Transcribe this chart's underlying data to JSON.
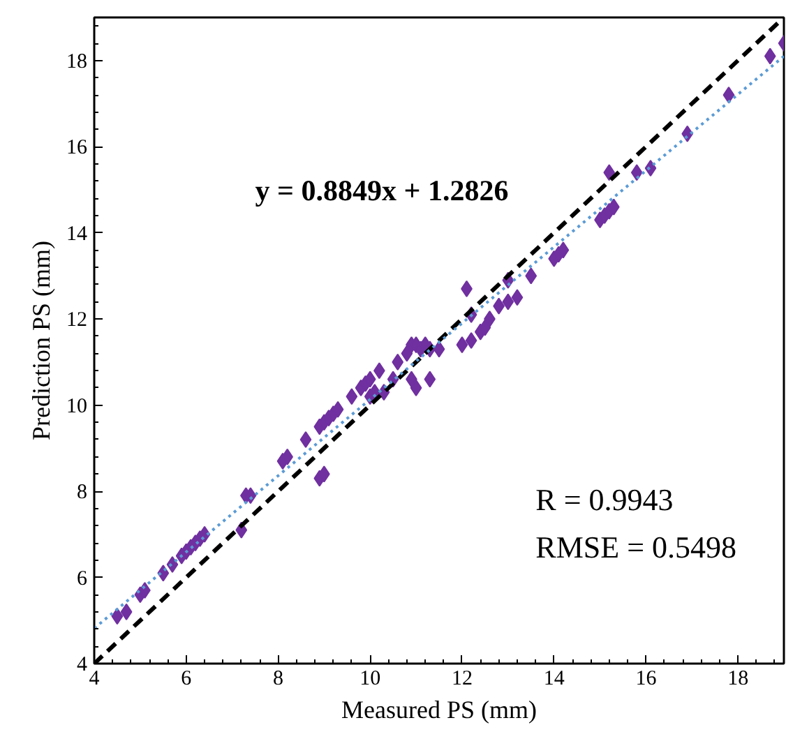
{
  "chart_data": {
    "type": "scatter",
    "xlabel": "Measured PS (mm)",
    "ylabel": "Prediction PS (mm)",
    "xlim": [
      4,
      19
    ],
    "ylim": [
      4,
      19
    ],
    "xticks": [
      4,
      6,
      8,
      10,
      12,
      14,
      16,
      18
    ],
    "yticks": [
      4,
      6,
      8,
      10,
      12,
      14,
      16,
      18
    ],
    "grid": false,
    "series": [
      {
        "color": "#7030a0",
        "marker": "diamond",
        "x": [
          4.5,
          4.7,
          5.0,
          5.1,
          5.5,
          5.7,
          5.9,
          6.0,
          6.1,
          6.2,
          6.3,
          6.4,
          7.2,
          7.3,
          7.4,
          8.1,
          8.2,
          8.6,
          8.9,
          9.0,
          8.9,
          9.0,
          9.1,
          9.2,
          9.3,
          9.6,
          9.8,
          9.9,
          10.0,
          10.0,
          10.1,
          10.2,
          10.3,
          10.5,
          10.6,
          10.8,
          10.9,
          10.9,
          11.0,
          11.0,
          11.1,
          11.2,
          11.3,
          11.3,
          11.5,
          12.0,
          12.1,
          12.2,
          12.2,
          12.4,
          12.5,
          12.6,
          12.8,
          13.0,
          13.0,
          13.2,
          13.5,
          14.0,
          14.1,
          14.2,
          15.0,
          15.1,
          15.2,
          15.3,
          15.2,
          15.8,
          16.1,
          16.9,
          17.8,
          18.7,
          19.0
        ],
        "values": [
          5.1,
          5.2,
          5.6,
          5.7,
          6.1,
          6.3,
          6.5,
          6.6,
          6.7,
          6.8,
          6.9,
          7.0,
          7.1,
          7.9,
          7.9,
          8.7,
          8.8,
          9.2,
          8.3,
          8.4,
          9.5,
          9.6,
          9.7,
          9.8,
          9.9,
          10.2,
          10.4,
          10.5,
          10.6,
          10.2,
          10.3,
          10.8,
          10.3,
          10.6,
          11.0,
          11.2,
          11.4,
          10.6,
          10.4,
          11.4,
          11.3,
          11.4,
          10.6,
          11.3,
          11.3,
          11.4,
          12.7,
          12.1,
          11.5,
          11.7,
          11.8,
          12.0,
          12.3,
          12.9,
          12.4,
          12.5,
          13.0,
          13.4,
          13.5,
          13.6,
          14.3,
          14.4,
          14.5,
          14.6,
          15.4,
          15.4,
          15.5,
          16.3,
          17.2,
          18.1,
          18.4
        ]
      },
      {
        "type": "line",
        "color": "#000000",
        "line_style": "dashed",
        "x": [
          4,
          19
        ],
        "values": [
          4,
          19
        ]
      },
      {
        "type": "line",
        "color": "#5b9bd5",
        "line_style": "dotted",
        "x": [
          4,
          19
        ],
        "values": [
          4.82,
          18.1
        ]
      }
    ],
    "annotations": [
      "y = 0.8849x + 1.2826",
      "R = 0.9943",
      "RMSE = 0.5498"
    ]
  }
}
